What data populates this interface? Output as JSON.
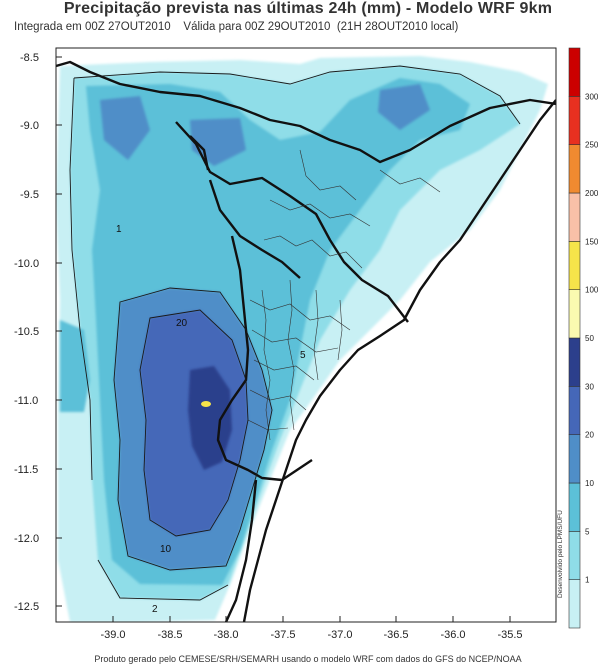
{
  "title": "Precipitação prevista nas últimas 24h (mm) - Modelo WRF 9km",
  "subtitle_left": "Integrada em 00Z 27OUT2010",
  "subtitle_right": "Válida para 00Z 29OUT2010  (21H 28OUT2010 local)",
  "footer": "Produto gerado pelo CEMESE/SRH/SEMARH usando o modelo WRF com dados do GFS do NCEP/NOAA",
  "credit": "Desenvolvido pelo LPMS/UFU",
  "x_ticks": [
    "-39.0",
    "-38.5",
    "-38.0",
    "-37.5",
    "-37.0",
    "-36.5",
    "-36.0",
    "-35.5"
  ],
  "y_ticks": [
    "-8.5",
    "-9.0",
    "-9.5",
    "-10.0",
    "-10.5",
    "-11.0",
    "-11.5",
    "-12.0",
    "-12.5"
  ],
  "colorbar": {
    "labels": [
      "1",
      "5",
      "10",
      "20",
      "30",
      "50",
      "100",
      "150",
      "200",
      "250",
      "300"
    ],
    "colors": [
      "#c8f0f4",
      "#8fdde8",
      "#5cc0d8",
      "#4f8ec8",
      "#4567b8",
      "#2c3f8c",
      "#fafab0",
      "#f6e44a",
      "#f9c0a8",
      "#f08a30",
      "#e83020",
      "#cc0000"
    ]
  },
  "contour_labels": [
    "1",
    "5",
    "10",
    "20",
    "2"
  ]
}
